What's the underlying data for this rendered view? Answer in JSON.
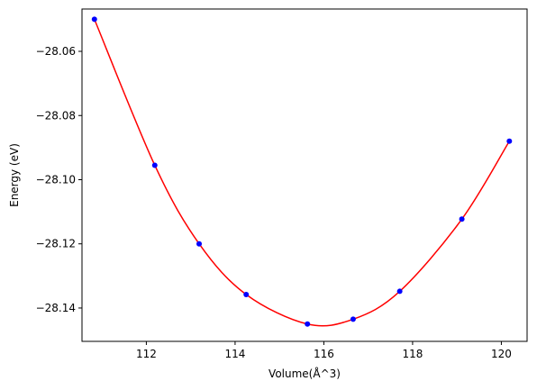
{
  "chart_data": {
    "type": "line",
    "xlabel": "Volume(Å^3)",
    "ylabel": "Energy (eV)",
    "xlim": [
      110.55,
      120.58
    ],
    "ylim": [
      -28.1504,
      -28.0468
    ],
    "x_ticks": [
      112,
      114,
      116,
      118,
      120
    ],
    "x_tick_labels": [
      "112",
      "114",
      "116",
      "118",
      "120"
    ],
    "y_ticks": [
      -28.06,
      -28.08,
      -28.1,
      -28.12,
      -28.14
    ],
    "y_tick_labels": [
      "−28.06",
      "−28.08",
      "−28.10",
      "−28.12",
      "−28.14"
    ],
    "grid": false,
    "series": [
      {
        "kind": "scatter",
        "color": "#0000ff",
        "x": [
          110.83,
          112.19,
          113.19,
          114.25,
          115.63,
          116.66,
          117.71,
          119.11,
          120.18
        ],
        "y": [
          -28.05,
          -28.0955,
          -28.12,
          -28.1358,
          -28.145,
          -28.1435,
          -28.1348,
          -28.1123,
          -28.088
        ]
      },
      {
        "kind": "fit-curve",
        "color": "#ff0000",
        "x_range": [
          110.83,
          120.18
        ],
        "x_min": 115.95,
        "y_min": -28.1455
      }
    ]
  }
}
